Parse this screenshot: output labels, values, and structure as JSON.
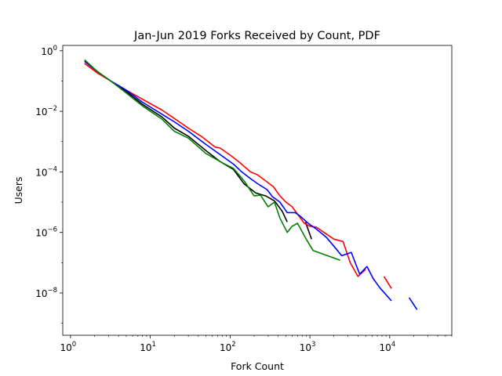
{
  "chart_data": {
    "type": "line",
    "title": "Jan-Jun 2019 Forks Received by Count, PDF",
    "xlabel": "Fork Count",
    "ylabel": "Users",
    "xscale": "log",
    "yscale": "log",
    "xlim": [
      0.8,
      60000
    ],
    "ylim": [
      4e-10,
      1.5
    ],
    "grid": false,
    "legend": "none",
    "x_ticks": [
      {
        "value": 1,
        "base": "10",
        "exp": "0"
      },
      {
        "value": 10,
        "base": "10",
        "exp": "1"
      },
      {
        "value": 100,
        "base": "10",
        "exp": "2"
      },
      {
        "value": 1000,
        "base": "10",
        "exp": "3"
      },
      {
        "value": 10000,
        "base": "10",
        "exp": "4"
      }
    ],
    "y_ticks": [
      {
        "value": 1,
        "base": "10",
        "exp": "0"
      },
      {
        "value": 0.01,
        "base": "10",
        "exp": "−2"
      },
      {
        "value": 0.0001,
        "base": "10",
        "exp": "−4"
      },
      {
        "value": 1e-06,
        "base": "10",
        "exp": "−6"
      },
      {
        "value": 1e-08,
        "base": "10",
        "exp": "−8"
      }
    ],
    "series": [
      {
        "color": "#000000",
        "segments": [
          [
            [
              1.5,
              0.45
            ],
            [
              2.2,
              0.2
            ],
            [
              3.2,
              0.1
            ],
            [
              5,
              0.045
            ],
            [
              8,
              0.017
            ],
            [
              14,
              0.0065
            ],
            [
              20,
              0.0028
            ],
            [
              30,
              0.0015
            ],
            [
              50,
              0.0005
            ],
            [
              75,
              0.00022
            ],
            [
              110,
              0.00012
            ],
            [
              150,
              4e-05
            ],
            [
              210,
              2e-05
            ],
            [
              280,
              1.6e-05
            ],
            [
              360,
              1.1e-05
            ],
            [
              450,
              5e-06
            ],
            [
              520,
              2.2e-06
            ]
          ],
          [
            [
              880,
              2.2e-06
            ],
            [
              1050,
              6e-07
            ]
          ]
        ]
      },
      {
        "color": "#ff0000",
        "segments": [
          [
            [
              1.5,
              0.38
            ],
            [
              2.2,
              0.18
            ],
            [
              3.2,
              0.1
            ],
            [
              5,
              0.05
            ],
            [
              8,
              0.025
            ],
            [
              14,
              0.011
            ],
            [
              20,
              0.0058
            ],
            [
              30,
              0.0028
            ],
            [
              45,
              0.0014
            ],
            [
              65,
              0.00066
            ],
            [
              75,
              0.00061
            ],
            [
              100,
              0.00036
            ],
            [
              130,
              0.00021
            ],
            [
              180,
              0.0001
            ],
            [
              220,
              8e-05
            ],
            [
              280,
              5e-05
            ],
            [
              350,
              3.2e-05
            ],
            [
              420,
              1.6e-05
            ],
            [
              500,
              1e-05
            ],
            [
              600,
              7e-06
            ],
            [
              700,
              4e-06
            ],
            [
              850,
              2e-06
            ],
            [
              1000,
              1.6e-06
            ],
            [
              1200,
              1.5e-06
            ],
            [
              1500,
              1e-06
            ],
            [
              2000,
              6e-07
            ],
            [
              2600,
              5e-07
            ],
            [
              3200,
              1e-07
            ],
            [
              4000,
              3.5e-08
            ],
            [
              5000,
              6e-08
            ]
          ],
          [
            [
              8500,
              3.5e-08
            ],
            [
              10500,
              1.4e-08
            ]
          ]
        ]
      },
      {
        "color": "#0000ff",
        "segments": [
          [
            [
              1.5,
              0.45
            ],
            [
              2.2,
              0.2
            ],
            [
              3.2,
              0.1
            ],
            [
              5,
              0.05
            ],
            [
              8,
              0.02
            ],
            [
              14,
              0.008
            ],
            [
              20,
              0.0045
            ],
            [
              30,
              0.0022
            ],
            [
              50,
              0.0008
            ],
            [
              80,
              0.00033
            ],
            [
              110,
              0.00018
            ],
            [
              140,
              0.0001
            ],
            [
              180,
              6e-05
            ],
            [
              230,
              3.8e-05
            ],
            [
              290,
              2.6e-05
            ],
            [
              340,
              1.5e-05
            ],
            [
              420,
              1e-05
            ],
            [
              520,
              4.5e-06
            ],
            [
              650,
              4.5e-06
            ],
            [
              750,
              3.5e-06
            ],
            [
              950,
              2e-06
            ],
            [
              1200,
              1.3e-06
            ],
            [
              1600,
              7e-07
            ],
            [
              2000,
              3.5e-07
            ],
            [
              2500,
              1.7e-07
            ],
            [
              3000,
              2e-07
            ],
            [
              3300,
              2.2e-07
            ],
            [
              4200,
              4.2e-08
            ],
            [
              5200,
              7.5e-08
            ],
            [
              6200,
              3e-08
            ],
            [
              7500,
              1.5e-08
            ],
            [
              10500,
              5.5e-09
            ]
          ],
          [
            [
              17500,
              7e-09
            ],
            [
              22000,
              2.8e-09
            ]
          ]
        ]
      },
      {
        "color": "#008000",
        "segments": [
          [
            [
              1.5,
              0.5
            ],
            [
              2.2,
              0.2
            ],
            [
              3.2,
              0.1
            ],
            [
              5,
              0.04
            ],
            [
              8,
              0.015
            ],
            [
              14,
              0.0055
            ],
            [
              20,
              0.0022
            ],
            [
              30,
              0.0013
            ],
            [
              50,
              0.0004
            ],
            [
              80,
              0.0002
            ],
            [
              110,
              0.00013
            ],
            [
              150,
              5e-05
            ],
            [
              200,
              1.6e-05
            ],
            [
              240,
              1.7e-05
            ],
            [
              300,
              7e-06
            ],
            [
              360,
              1e-05
            ],
            [
              420,
              3e-06
            ],
            [
              520,
              1e-06
            ],
            [
              600,
              1.6e-06
            ],
            [
              700,
              2e-06
            ],
            [
              900,
              6e-07
            ],
            [
              1100,
              2.5e-07
            ],
            [
              2400,
              1.2e-07
            ]
          ]
        ]
      }
    ]
  }
}
